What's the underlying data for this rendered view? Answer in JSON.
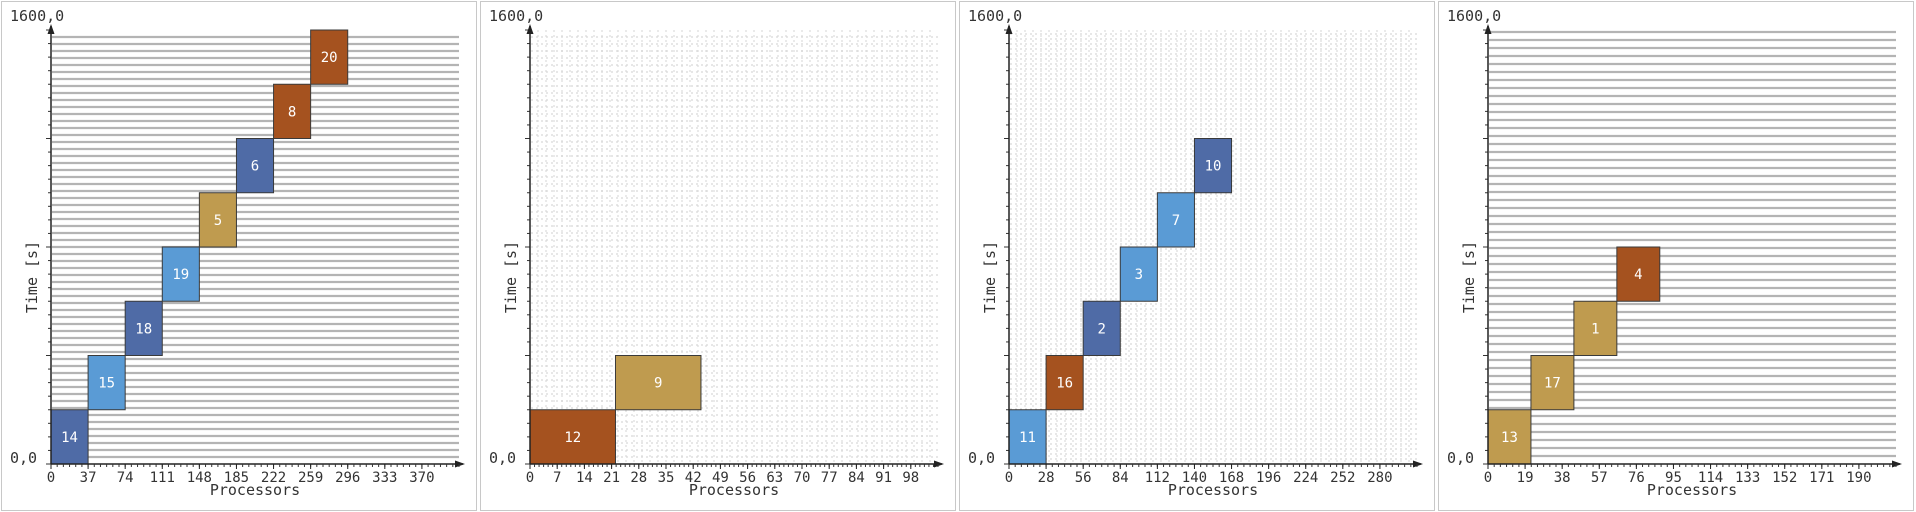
{
  "chart_data": [
    {
      "type": "gantt",
      "xlabel": "Processors",
      "ylabel": "Time [s]",
      "corner_top": "1600,0",
      "corner_origin": "0,0",
      "xlim": [
        0,
        407
      ],
      "ylim": [
        0,
        1600
      ],
      "xticks": [
        "0",
        "37",
        "74",
        "111",
        "148",
        "185",
        "222",
        "259",
        "296",
        "333",
        "370"
      ],
      "tasks": [
        {
          "label": "14",
          "x0": 0,
          "x1": 37,
          "y0": 0,
          "y1": 200,
          "color": "#4f6ba6"
        },
        {
          "label": "15",
          "x0": 37,
          "x1": 74,
          "y0": 200,
          "y1": 400,
          "color": "#5a9bd5"
        },
        {
          "label": "18",
          "x0": 74,
          "x1": 111,
          "y0": 400,
          "y1": 600,
          "color": "#4f6ba6"
        },
        {
          "label": "19",
          "x0": 111,
          "x1": 148,
          "y0": 600,
          "y1": 800,
          "color": "#5a9bd5"
        },
        {
          "label": "5",
          "x0": 148,
          "x1": 185,
          "y0": 800,
          "y1": 1000,
          "color": "#bf9b4f"
        },
        {
          "label": "6",
          "x0": 185,
          "x1": 222,
          "y0": 1000,
          "y1": 1200,
          "color": "#4f6ba6"
        },
        {
          "label": "8",
          "x0": 222,
          "x1": 259,
          "y0": 1200,
          "y1": 1400,
          "color": "#a5521f"
        },
        {
          "label": "20",
          "x0": 259,
          "x1": 296,
          "y0": 1400,
          "y1": 1600,
          "color": "#a5521f"
        }
      ]
    },
    {
      "type": "gantt",
      "xlabel": "Processors",
      "ylabel": "Time [s]",
      "corner_top": "1600,0",
      "corner_origin": "0,0",
      "xlim": [
        0,
        105
      ],
      "ylim": [
        0,
        1600
      ],
      "xticks": [
        "0",
        "7",
        "14",
        "21",
        "28",
        "35",
        "42",
        "49",
        "56",
        "63",
        "70",
        "77",
        "84",
        "91",
        "98"
      ],
      "tasks": [
        {
          "label": "12",
          "x0": 0,
          "x1": 22,
          "y0": 0,
          "y1": 200,
          "color": "#a5521f"
        },
        {
          "label": "9",
          "x0": 22,
          "x1": 44,
          "y0": 200,
          "y1": 400,
          "color": "#bf9b4f"
        }
      ]
    },
    {
      "type": "gantt",
      "xlabel": "Processors",
      "ylabel": "Time [s]",
      "corner_top": "1600,0",
      "corner_origin": "0,0",
      "xlim": [
        0,
        308
      ],
      "ylim": [
        0,
        1600
      ],
      "xticks": [
        "0",
        "28",
        "56",
        "84",
        "112",
        "140",
        "168",
        "196",
        "224",
        "252",
        "280"
      ],
      "tasks": [
        {
          "label": "11",
          "x0": 0,
          "x1": 28,
          "y0": 0,
          "y1": 200,
          "color": "#5a9bd5"
        },
        {
          "label": "16",
          "x0": 28,
          "x1": 56,
          "y0": 200,
          "y1": 400,
          "color": "#a5521f"
        },
        {
          "label": "2",
          "x0": 56,
          "x1": 84,
          "y0": 400,
          "y1": 600,
          "color": "#4f6ba6"
        },
        {
          "label": "3",
          "x0": 84,
          "x1": 112,
          "y0": 600,
          "y1": 800,
          "color": "#5a9bd5"
        },
        {
          "label": "7",
          "x0": 112,
          "x1": 140,
          "y0": 800,
          "y1": 1000,
          "color": "#5a9bd5"
        },
        {
          "label": "10",
          "x0": 140,
          "x1": 168,
          "y0": 1000,
          "y1": 1200,
          "color": "#4f6ba6"
        }
      ]
    },
    {
      "type": "gantt",
      "xlabel": "Processors",
      "ylabel": "Time [s]",
      "corner_top": "1600,0",
      "corner_origin": "0,0",
      "xlim": [
        0,
        209
      ],
      "ylim": [
        0,
        1600
      ],
      "xticks": [
        "0",
        "19",
        "38",
        "57",
        "76",
        "95",
        "114",
        "133",
        "152",
        "171",
        "190"
      ],
      "tasks": [
        {
          "label": "13",
          "x0": 0,
          "x1": 22,
          "y0": 0,
          "y1": 200,
          "color": "#bf9b4f"
        },
        {
          "label": "17",
          "x0": 22,
          "x1": 44,
          "y0": 200,
          "y1": 400,
          "color": "#bf9b4f"
        },
        {
          "label": "1",
          "x0": 44,
          "x1": 66,
          "y0": 400,
          "y1": 600,
          "color": "#bf9b4f"
        },
        {
          "label": "4",
          "x0": 66,
          "x1": 88,
          "y0": 600,
          "y1": 800,
          "color": "#a5521f"
        }
      ]
    }
  ]
}
